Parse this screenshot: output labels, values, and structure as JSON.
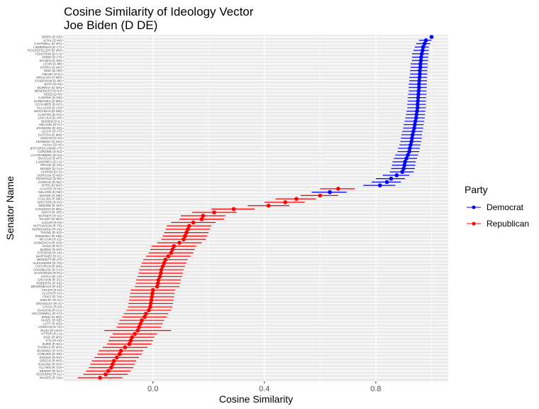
{
  "chart_data": {
    "type": "scatter",
    "title": "Cosine Similarity of Ideology Vector",
    "subtitle": "Joe Biden (D DE)",
    "xlabel": "Cosine Similarity",
    "ylabel": "Senator Name",
    "xlim": [
      -0.32,
      1.06
    ],
    "x_ticks": [
      0.0,
      0.4,
      0.8
    ],
    "x_tick_labels": [
      "0.0",
      "0.4",
      "0.8"
    ],
    "grid": true,
    "legend": {
      "title": "Party",
      "position": "right",
      "entries": [
        {
          "label": "Democrat",
          "color": "#0000ff"
        },
        {
          "label": "Republican",
          "color": "#ff0000"
        }
      ]
    },
    "colors": {
      "Democrat": "#0000ff",
      "Republican": "#ff0000"
    },
    "senators": [
      {
        "name": "BIDEN (D DE)",
        "party": "Democrat",
        "value": 1.0,
        "lo": 1.0,
        "hi": 1.0
      },
      {
        "name": "KOHL (D WI)",
        "party": "Democrat",
        "value": 0.98,
        "lo": 0.955,
        "hi": 1.0
      },
      {
        "name": "CANTWELL (D WA)",
        "party": "Democrat",
        "value": 0.975,
        "lo": 0.945,
        "hi": 0.995
      },
      {
        "name": "LIEBERMAN (D CT)",
        "party": "Democrat",
        "value": 0.97,
        "lo": 0.94,
        "hi": 0.99
      },
      {
        "name": "ROCKEFELLER (D WV)",
        "party": "Democrat",
        "value": 0.968,
        "lo": 0.935,
        "hi": 0.99
      },
      {
        "name": "FEINSTEIN (D CA)",
        "party": "Democrat",
        "value": 0.965,
        "lo": 0.93,
        "hi": 0.99
      },
      {
        "name": "DODD (D CT)",
        "party": "Democrat",
        "value": 0.963,
        "lo": 0.93,
        "hi": 0.988
      },
      {
        "name": "WYDEN (D OR)",
        "party": "Democrat",
        "value": 0.962,
        "lo": 0.93,
        "hi": 0.988
      },
      {
        "name": "LEVIN (D MI)",
        "party": "Democrat",
        "value": 0.96,
        "lo": 0.925,
        "hi": 0.986
      },
      {
        "name": "KERRY (D MA)",
        "party": "Democrat",
        "value": 0.96,
        "lo": 0.925,
        "hi": 0.986
      },
      {
        "name": "REID (D NV)",
        "party": "Democrat",
        "value": 0.958,
        "lo": 0.923,
        "hi": 0.985
      },
      {
        "name": "OBAMA (D IL)",
        "party": "Democrat",
        "value": 0.958,
        "lo": 0.923,
        "hi": 0.985
      },
      {
        "name": "MIKULSKI (D MD)",
        "party": "Democrat",
        "value": 0.957,
        "lo": 0.92,
        "hi": 0.984
      },
      {
        "name": "STABENOW (D MI)",
        "party": "Democrat",
        "value": 0.956,
        "lo": 0.92,
        "hi": 0.984
      },
      {
        "name": "BAYH (D IN)",
        "party": "Democrat",
        "value": 0.955,
        "lo": 0.918,
        "hi": 0.983
      },
      {
        "name": "MURRAY (D WA)",
        "party": "Democrat",
        "value": 0.955,
        "lo": 0.918,
        "hi": 0.983
      },
      {
        "name": "MENENDEZ (D NJ)",
        "party": "Democrat",
        "value": 0.954,
        "lo": 0.918,
        "hi": 0.982
      },
      {
        "name": "REED (D RI)",
        "party": "Democrat",
        "value": 0.953,
        "lo": 0.916,
        "hi": 0.982
      },
      {
        "name": "CARPER (D DE)",
        "party": "Democrat",
        "value": 0.952,
        "lo": 0.915,
        "hi": 0.981
      },
      {
        "name": "SARBANES (D MD)",
        "party": "Democrat",
        "value": 0.951,
        "lo": 0.914,
        "hi": 0.98
      },
      {
        "name": "SCHUMER (D NY)",
        "party": "Democrat",
        "value": 0.95,
        "lo": 0.913,
        "hi": 0.98
      },
      {
        "name": "SALAZAR (D CO)",
        "party": "Democrat",
        "value": 0.95,
        "lo": 0.913,
        "hi": 0.98
      },
      {
        "name": "BINGAMAN (D NM)",
        "party": "Democrat",
        "value": 0.948,
        "lo": 0.91,
        "hi": 0.978
      },
      {
        "name": "CLINTON (D NY)",
        "party": "Democrat",
        "value": 0.946,
        "lo": 0.908,
        "hi": 0.977
      },
      {
        "name": "LINCOLN (D AR)",
        "party": "Democrat",
        "value": 0.945,
        "lo": 0.906,
        "hi": 0.976
      },
      {
        "name": "DURBIN (D IL)",
        "party": "Democrat",
        "value": 0.942,
        "lo": 0.903,
        "hi": 0.974
      },
      {
        "name": "NELSON (D FL)",
        "party": "Democrat",
        "value": 0.94,
        "lo": 0.9,
        "hi": 0.972
      },
      {
        "name": "JOHNSON (D SD)",
        "party": "Democrat",
        "value": 0.938,
        "lo": 0.898,
        "hi": 0.97
      },
      {
        "name": "LEAHY (D VT)",
        "party": "Democrat",
        "value": 0.935,
        "lo": 0.895,
        "hi": 0.968
      },
      {
        "name": "DAYTON (D MN)",
        "party": "Democrat",
        "value": 0.932,
        "lo": 0.892,
        "hi": 0.966
      },
      {
        "name": "INOUYE (D HI)",
        "party": "Democrat",
        "value": 0.93,
        "lo": 0.89,
        "hi": 0.965
      },
      {
        "name": "KENNEDY (D MA)",
        "party": "Democrat",
        "value": 0.928,
        "lo": 0.888,
        "hi": 0.963
      },
      {
        "name": "AKAKA (D HI)",
        "party": "Democrat",
        "value": 0.925,
        "lo": 0.885,
        "hi": 0.96
      },
      {
        "name": "JEFFORDS (I/I/NR VT)",
        "party": "Democrat",
        "value": 0.922,
        "lo": 0.88,
        "hi": 0.958
      },
      {
        "name": "CORZINE (D NJ)",
        "party": "Democrat",
        "value": 0.92,
        "lo": 0.878,
        "hi": 0.956
      },
      {
        "name": "LAUTENBERG (D NJ)",
        "party": "Democrat",
        "value": 0.915,
        "lo": 0.87,
        "hi": 0.952
      },
      {
        "name": "BAUCUS (D MT)",
        "party": "Democrat",
        "value": 0.91,
        "lo": 0.865,
        "hi": 0.948
      },
      {
        "name": "LANDRIEU (D LA)",
        "party": "Democrat",
        "value": 0.905,
        "lo": 0.86,
        "hi": 0.944
      },
      {
        "name": "PRYOR (D AR)",
        "party": "Democrat",
        "value": 0.903,
        "lo": 0.858,
        "hi": 0.942
      },
      {
        "name": "BOXER (D CA)",
        "party": "Democrat",
        "value": 0.9,
        "lo": 0.855,
        "hi": 0.94
      },
      {
        "name": "HARKIN (D IA)",
        "party": "Democrat",
        "value": 0.895,
        "lo": 0.85,
        "hi": 0.936
      },
      {
        "name": "DORGAN (D ND)",
        "party": "Democrat",
        "value": 0.875,
        "lo": 0.825,
        "hi": 0.92
      },
      {
        "name": "FEINGOLD (D WI)",
        "party": "Democrat",
        "value": 0.855,
        "lo": 0.8,
        "hi": 0.905
      },
      {
        "name": "CONRAD (D ND)",
        "party": "Democrat",
        "value": 0.84,
        "lo": 0.785,
        "hi": 0.89
      },
      {
        "name": "BYRD (D WV)",
        "party": "Democrat",
        "value": 0.815,
        "lo": 0.755,
        "hi": 0.87
      },
      {
        "name": "CHAFEE (R RI)",
        "party": "Republican",
        "value": 0.665,
        "lo": 0.6,
        "hi": 0.725
      },
      {
        "name": "NELSON (D NE)",
        "party": "Democrat",
        "value": 0.635,
        "lo": 0.57,
        "hi": 0.695
      },
      {
        "name": "SNOWE (R ME)",
        "party": "Republican",
        "value": 0.6,
        "lo": 0.53,
        "hi": 0.665
      },
      {
        "name": "COLLINS (R ME)",
        "party": "Republican",
        "value": 0.515,
        "lo": 0.44,
        "hi": 0.585
      },
      {
        "name": "SPECTER (R PA)",
        "party": "Republican",
        "value": 0.475,
        "lo": 0.4,
        "hi": 0.545
      },
      {
        "name": "DEWINE (R OH)",
        "party": "Republican",
        "value": 0.415,
        "lo": 0.34,
        "hi": 0.49
      },
      {
        "name": "COLEMAN (R MN)",
        "party": "Republican",
        "value": 0.29,
        "lo": 0.21,
        "hi": 0.365
      },
      {
        "name": "SMITH (R OR)",
        "party": "Republican",
        "value": 0.22,
        "lo": 0.14,
        "hi": 0.3
      },
      {
        "name": "WARNER (R VA)",
        "party": "Republican",
        "value": 0.18,
        "lo": 0.1,
        "hi": 0.26
      },
      {
        "name": "TALENT (R MO)",
        "party": "Republican",
        "value": 0.175,
        "lo": 0.095,
        "hi": 0.255
      },
      {
        "name": "LUGAR (R IN)",
        "party": "Republican",
        "value": 0.145,
        "lo": 0.065,
        "hi": 0.225
      },
      {
        "name": "HUTCHISON (R TX)",
        "party": "Republican",
        "value": 0.13,
        "lo": 0.05,
        "hi": 0.21
      },
      {
        "name": "MURKOWSKI (R AK)",
        "party": "Republican",
        "value": 0.125,
        "lo": 0.045,
        "hi": 0.205
      },
      {
        "name": "THUNE (R SD)",
        "party": "Republican",
        "value": 0.12,
        "lo": 0.04,
        "hi": 0.2
      },
      {
        "name": "DOMENICI (R NM)",
        "party": "Republican",
        "value": 0.115,
        "lo": 0.035,
        "hi": 0.195
      },
      {
        "name": "MCCAIN (R AZ)",
        "party": "Republican",
        "value": 0.11,
        "lo": 0.03,
        "hi": 0.19
      },
      {
        "name": "VOINOVICH (R OH)",
        "party": "Republican",
        "value": 0.095,
        "lo": 0.015,
        "hi": 0.175
      },
      {
        "name": "DOLE (R NC)",
        "party": "Republican",
        "value": 0.075,
        "lo": -0.005,
        "hi": 0.155
      },
      {
        "name": "BURNS (R MT)",
        "party": "Republican",
        "value": 0.07,
        "lo": -0.01,
        "hi": 0.15
      },
      {
        "name": "STEVENS (R AK)",
        "party": "Republican",
        "value": 0.065,
        "lo": -0.015,
        "hi": 0.145
      },
      {
        "name": "MARTINEZ (R FL)",
        "party": "Republican",
        "value": 0.055,
        "lo": -0.025,
        "hi": 0.135
      },
      {
        "name": "BENNETT (R UT)",
        "party": "Republican",
        "value": 0.045,
        "lo": -0.035,
        "hi": 0.125
      },
      {
        "name": "ALEXANDER (R TN)",
        "party": "Republican",
        "value": 0.04,
        "lo": -0.04,
        "hi": 0.12
      },
      {
        "name": "COCHRAN (R MS)",
        "party": "Republican",
        "value": 0.035,
        "lo": -0.045,
        "hi": 0.115
      },
      {
        "name": "CHAMBLISS (R GA)",
        "party": "Republican",
        "value": 0.03,
        "lo": -0.05,
        "hi": 0.11
      },
      {
        "name": "SANTORUM (R PA)",
        "party": "Republican",
        "value": 0.028,
        "lo": -0.052,
        "hi": 0.108
      },
      {
        "name": "HATCH (R UT)",
        "party": "Republican",
        "value": 0.025,
        "lo": -0.055,
        "hi": 0.105
      },
      {
        "name": "GRAHAM (R SC)",
        "party": "Republican",
        "value": 0.02,
        "lo": -0.06,
        "hi": 0.1
      },
      {
        "name": "ROBERTS (R KS)",
        "party": "Republican",
        "value": 0.018,
        "lo": -0.062,
        "hi": 0.098
      },
      {
        "name": "BROWNBACK (R KS)",
        "party": "Republican",
        "value": 0.015,
        "lo": -0.065,
        "hi": 0.095
      },
      {
        "name": "CRAPO (R ID)",
        "party": "Republican",
        "value": 0.0,
        "lo": -0.08,
        "hi": 0.08
      },
      {
        "name": "ALLEN (R VA)",
        "party": "Republican",
        "value": -0.002,
        "lo": -0.082,
        "hi": 0.078
      },
      {
        "name": "FRIST (R TN)",
        "party": "Republican",
        "value": -0.004,
        "lo": -0.084,
        "hi": 0.076
      },
      {
        "name": "SHELBY (R AL)",
        "party": "Republican",
        "value": -0.006,
        "lo": -0.086,
        "hi": 0.074
      },
      {
        "name": "GRASSLEY (R IA)",
        "party": "Republican",
        "value": -0.008,
        "lo": -0.088,
        "hi": 0.072
      },
      {
        "name": "CRAIG (R ID)",
        "party": "Republican",
        "value": -0.01,
        "lo": -0.09,
        "hi": 0.07
      },
      {
        "name": "ISAKSON (R GA)",
        "party": "Republican",
        "value": -0.015,
        "lo": -0.095,
        "hi": 0.065
      },
      {
        "name": "MCCONNELL (R KY)",
        "party": "Republican",
        "value": -0.025,
        "lo": -0.105,
        "hi": 0.055
      },
      {
        "name": "BOND (R MO)",
        "party": "Republican",
        "value": -0.03,
        "lo": -0.11,
        "hi": 0.05
      },
      {
        "name": "HAGEL (R NE)",
        "party": "Republican",
        "value": -0.04,
        "lo": -0.12,
        "hi": 0.04
      },
      {
        "name": "LOTT (R MS)",
        "party": "Republican",
        "value": -0.045,
        "lo": -0.125,
        "hi": 0.035
      },
      {
        "name": "CORNYN (R TX)",
        "party": "Republican",
        "value": -0.05,
        "lo": -0.13,
        "hi": 0.03
      },
      {
        "name": "BUSH (R USA)",
        "party": "Republican",
        "value": -0.055,
        "lo": -0.175,
        "hi": 0.065
      },
      {
        "name": "VITTER (R LA)",
        "party": "Republican",
        "value": -0.065,
        "lo": -0.145,
        "hi": 0.015
      },
      {
        "name": "ENZI (R WY)",
        "party": "Republican",
        "value": -0.075,
        "lo": -0.155,
        "hi": 0.005
      },
      {
        "name": "KYL (R AZ)",
        "party": "Republican",
        "value": -0.08,
        "lo": -0.16,
        "hi": 0.0
      },
      {
        "name": "BURR (R NC)",
        "party": "Republican",
        "value": -0.085,
        "lo": -0.165,
        "hi": -0.005
      },
      {
        "name": "THOMAS (R WY)",
        "party": "Republican",
        "value": -0.1,
        "lo": -0.18,
        "hi": -0.02
      },
      {
        "name": "BUNNING (R KY)",
        "party": "Republican",
        "value": -0.115,
        "lo": -0.195,
        "hi": -0.035
      },
      {
        "name": "COBURN (R OK)",
        "party": "Republican",
        "value": -0.12,
        "lo": -0.2,
        "hi": -0.04
      },
      {
        "name": "ENSIGN (R NV)",
        "party": "Republican",
        "value": -0.13,
        "lo": -0.21,
        "hi": -0.05
      },
      {
        "name": "GREGG (R NH)",
        "party": "Republican",
        "value": -0.14,
        "lo": -0.22,
        "hi": -0.06
      },
      {
        "name": "SUNUNU (R NH)",
        "party": "Republican",
        "value": -0.145,
        "lo": -0.225,
        "hi": -0.065
      },
      {
        "name": "ALLARD (R CO)",
        "party": "Republican",
        "value": -0.15,
        "lo": -0.23,
        "hi": -0.07
      },
      {
        "name": "DEMINT (R SC)",
        "party": "Republican",
        "value": -0.16,
        "lo": -0.24,
        "hi": -0.08
      },
      {
        "name": "SESSIONS (R AL)",
        "party": "Republican",
        "value": -0.17,
        "lo": -0.25,
        "hi": -0.09
      },
      {
        "name": "INHOFE (R OK)",
        "party": "Republican",
        "value": -0.19,
        "lo": -0.27,
        "hi": -0.11
      }
    ]
  }
}
